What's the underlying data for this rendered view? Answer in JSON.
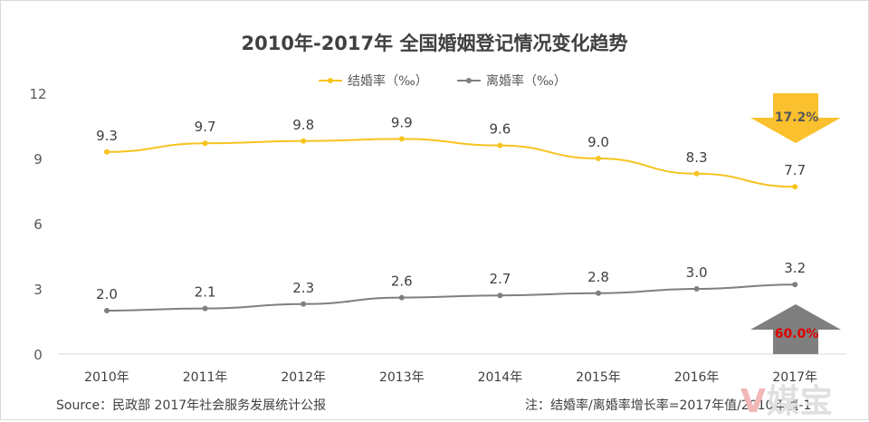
{
  "chart_data": {
    "type": "line",
    "title": "2010年-2017年 全国婚姻登记情况变化趋势",
    "categories": [
      "2010年",
      "2011年",
      "2012年",
      "2013年",
      "2014年",
      "2015年",
      "2016年",
      "2017年"
    ],
    "ylim": [
      0,
      12
    ],
    "yticks": [
      "0",
      "3",
      "6",
      "9",
      "12"
    ],
    "grid": false,
    "legend_position": "top-center",
    "series": [
      {
        "name": "结婚率（‰）",
        "color": "#f7c31f",
        "values": [
          9.3,
          9.7,
          9.8,
          9.9,
          9.6,
          9.0,
          8.3,
          7.7
        ],
        "labels": [
          "9.3",
          "9.7",
          "9.8",
          "9.9",
          "9.6",
          "9.0",
          "8.3",
          "7.7"
        ]
      },
      {
        "name": "离婚率（‰）",
        "color": "#7f7f7f",
        "values": [
          2.0,
          2.1,
          2.3,
          2.6,
          2.7,
          2.8,
          3.0,
          3.2
        ],
        "labels": [
          "2.0",
          "2.1",
          "2.3",
          "2.6",
          "2.7",
          "2.8",
          "3.0",
          "3.2"
        ]
      }
    ],
    "annotations": [
      {
        "text": "17.2%",
        "direction": "down",
        "arrow_color": "#fbc02d",
        "text_color": "#595959",
        "series": "结婚率（‰）"
      },
      {
        "text": "60.0%",
        "direction": "up",
        "arrow_color": "#7f7f7f",
        "text_color": "#e00000",
        "series": "离婚率（‰）"
      }
    ]
  },
  "footer": {
    "source": "Source：民政部 2017年社会服务发展统计公报",
    "note": "注：结婚率/离婚率增长率=2017年值/2010年值-1"
  },
  "watermark": {
    "part1": "V",
    "part2": "媒宝"
  }
}
